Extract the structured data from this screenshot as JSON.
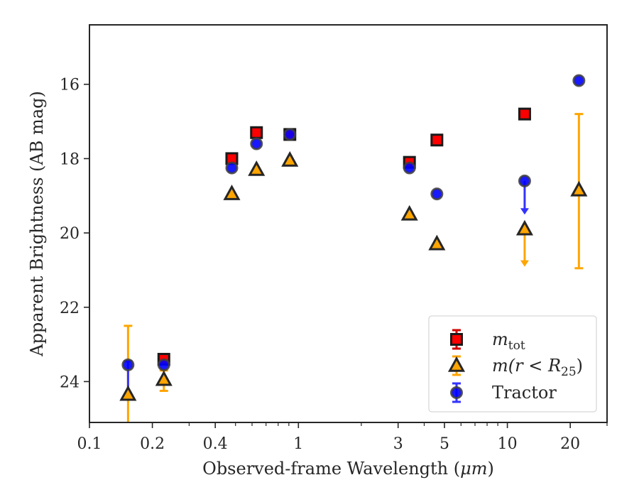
{
  "chart_data": {
    "type": "scatter",
    "xlabel_prefix": "Observed-frame Wavelength (",
    "xlabel_unit": "μm",
    "xlabel_suffix": ")",
    "ylabel": "Apparent Brightness (AB mag)",
    "xscale": "log",
    "xlim": [
      0.1,
      30
    ],
    "ylim": [
      25.1,
      14.4
    ],
    "y_inverted": true,
    "x_ticks": [
      0.1,
      0.2,
      0.4,
      1,
      3,
      5,
      10,
      20
    ],
    "x_tick_labels": [
      "0.1",
      "0.2",
      "0.4",
      "1",
      "3",
      "5",
      "10",
      "20"
    ],
    "y_ticks": [
      16,
      18,
      20,
      22,
      24
    ],
    "y_tick_labels": [
      "16",
      "18",
      "20",
      "22",
      "24"
    ],
    "grid": false,
    "legend_position": "lower-right",
    "legend": [
      {
        "key": "mtot",
        "main": "m",
        "sub": "tot",
        "suffix": ""
      },
      {
        "key": "mr25",
        "main": "m(r < R",
        "sub": "25",
        "suffix": ")"
      },
      {
        "key": "tractor",
        "main": "Tractor",
        "sub": "",
        "suffix": ""
      }
    ],
    "series": [
      {
        "key": "mtot",
        "marker": "square",
        "color": "#ff0000",
        "edge": "#1a1a1a",
        "errcolor": "#d00000",
        "points": [
          {
            "x": 0.227,
            "y": 23.4
          },
          {
            "x": 0.48,
            "y": 18.0
          },
          {
            "x": 0.63,
            "y": 17.3
          },
          {
            "x": 0.91,
            "y": 17.35
          },
          {
            "x": 3.4,
            "y": 18.1
          },
          {
            "x": 4.6,
            "y": 17.5
          },
          {
            "x": 12.1,
            "y": 16.8
          }
        ]
      },
      {
        "key": "mr25",
        "marker": "triangle",
        "color": "#ffa500",
        "edge": "#262626",
        "errcolor": "#ffa500",
        "points": [
          {
            "x": 0.153,
            "y": 24.35,
            "yerr_low": 22.5,
            "yerr_high": 25.1
          },
          {
            "x": 0.227,
            "y": 23.95,
            "yerr_low": 23.7,
            "yerr_high": 24.25
          },
          {
            "x": 0.48,
            "y": 18.95
          },
          {
            "x": 0.63,
            "y": 18.3
          },
          {
            "x": 0.91,
            "y": 18.05
          },
          {
            "x": 3.4,
            "y": 19.5
          },
          {
            "x": 4.6,
            "y": 20.3
          },
          {
            "x": 12.1,
            "y": 19.9,
            "upper_limit_to": 20.85
          },
          {
            "x": 22.0,
            "y": 18.85,
            "yerr_low": 16.8,
            "yerr_high": 20.95
          }
        ]
      },
      {
        "key": "tractor",
        "marker": "circle",
        "color": "#0000ff",
        "edge": "#404040",
        "errcolor": "#3333ff",
        "points": [
          {
            "x": 0.153,
            "y": 23.55,
            "yerr_low": 23.45,
            "yerr_high": 24.35
          },
          {
            "x": 0.227,
            "y": 23.55
          },
          {
            "x": 0.48,
            "y": 18.25
          },
          {
            "x": 0.63,
            "y": 17.6
          },
          {
            "x": 0.91,
            "y": 17.35
          },
          {
            "x": 3.4,
            "y": 18.25
          },
          {
            "x": 4.6,
            "y": 18.95
          },
          {
            "x": 12.1,
            "y": 18.6,
            "upper_limit_to": 19.45
          },
          {
            "x": 22.0,
            "y": 15.9
          }
        ]
      }
    ]
  }
}
